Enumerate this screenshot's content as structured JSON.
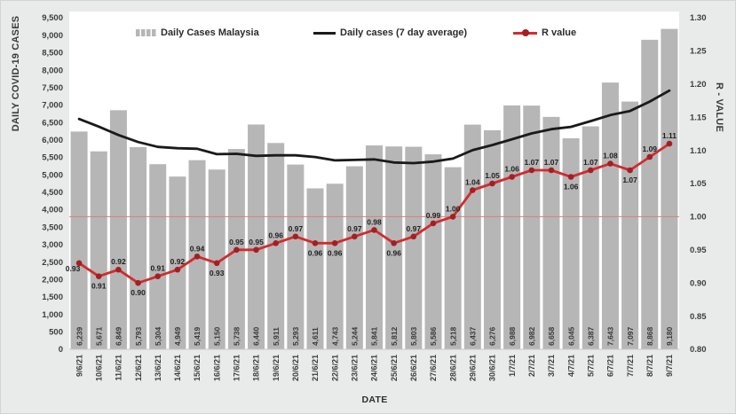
{
  "page": {
    "background": "#e9ebea",
    "plot_background": "#ffffff"
  },
  "chart_data": {
    "type": "bar",
    "title": "",
    "x_axis": {
      "label": "DATE",
      "categories": [
        "9/6/21",
        "10/6/21",
        "11/6/21",
        "12/6/21",
        "13/6/21",
        "14/6/21",
        "15/6/21",
        "16/6/21",
        "17/6/21",
        "18/6/21",
        "19/6/21",
        "20/6/21",
        "21/6/21",
        "22/6/21",
        "23/6/21",
        "24/6/21",
        "25/6/21",
        "26/6/21",
        "27/6/21",
        "28/6/21",
        "29/6/21",
        "30/6/21",
        "1/7/21",
        "2/7/21",
        "3/7/21",
        "4/7/21",
        "5/7/21",
        "6/7/21",
        "7/7/21",
        "8/7/21",
        "9/7/21"
      ]
    },
    "y_left": {
      "label": "DAILY COVID-19 CASES",
      "min": 0,
      "max": 9500,
      "step": 500,
      "ticks": [
        "0",
        "500",
        "1,000",
        "1,500",
        "2,000",
        "2,500",
        "3,000",
        "3,500",
        "4,000",
        "4,500",
        "5,000",
        "5,500",
        "6,000",
        "6,500",
        "7,000",
        "7,500",
        "8,000",
        "8,500",
        "9,000",
        "9,500"
      ]
    },
    "y_right": {
      "label": "R - VALUE",
      "min": 0.8,
      "max": 1.3,
      "step": 0.05,
      "ticks": [
        "0.80",
        "0.85",
        "0.90",
        "0.95",
        "1.00",
        "1.05",
        "1.10",
        "1.15",
        "1.20",
        "1.25",
        "1.30"
      ]
    },
    "grid": "off",
    "legend_position": "top-inside",
    "series": [
      {
        "name": "Daily Cases Malaysia",
        "type": "bar",
        "axis": "left",
        "color": "#b6b6b6",
        "values": [
          6239,
          5671,
          6849,
          5793,
          5304,
          4949,
          5419,
          5150,
          5738,
          6440,
          5911,
          5293,
          4611,
          4743,
          5244,
          5841,
          5812,
          5803,
          5586,
          5218,
          6437,
          6276,
          6988,
          6982,
          6658,
          6045,
          6387,
          7643,
          7097,
          8868,
          9180
        ],
        "value_labels": [
          "6,239",
          "5,671",
          "6,849",
          "5,793",
          "5,304",
          "4,949",
          "5,419",
          "5,150",
          "5,738",
          "6,440",
          "5,911",
          "5,293",
          "4,611",
          "4,743",
          "5,244",
          "5,841",
          "5,812",
          "5,803",
          "5,586",
          "5,218",
          "6,437",
          "6,276",
          "6,988",
          "6,982",
          "6,658",
          "6,045",
          "6,387",
          "7,643",
          "7,097",
          "8,868",
          "9,180"
        ]
      },
      {
        "name": "Daily cases (7 day average)",
        "type": "line",
        "axis": "left",
        "color": "#1a1a1a",
        "values": [
          6600,
          6380,
          6140,
          5940,
          5800,
          5760,
          5746,
          5591,
          5600,
          5542,
          5559,
          5557,
          5509,
          5412,
          5426,
          5440,
          5351,
          5335,
          5377,
          5464,
          5706,
          5853,
          6017,
          6184,
          6306,
          6372,
          6539,
          6711,
          6829,
          7097,
          7411
        ]
      },
      {
        "name": "R value",
        "type": "line",
        "axis": "right",
        "color": "#d22b2b",
        "marker_color": "#a31f24",
        "values": [
          0.93,
          0.91,
          0.92,
          0.9,
          0.91,
          0.92,
          0.94,
          0.93,
          0.95,
          0.95,
          0.96,
          0.97,
          0.96,
          0.96,
          0.97,
          0.98,
          0.96,
          0.97,
          0.99,
          1.0,
          1.04,
          1.05,
          1.06,
          1.07,
          1.07,
          1.06,
          1.07,
          1.08,
          1.07,
          1.09,
          1.11
        ],
        "point_labels": [
          "0.93",
          "0.91",
          "0.92",
          "0.90",
          "0.91",
          "0.92",
          "0.94",
          "0.93",
          "0.95",
          "0.95",
          "0.96",
          "0.97",
          "0.96",
          "0.96",
          "0.97",
          "0.98",
          "0.96",
          "0.97",
          "0.99",
          "1.00",
          "1.04",
          "1.05",
          "1.06",
          "1.07",
          "1.07",
          "1.06",
          "1.07",
          "1.08",
          "1.07",
          "1.09",
          "1.11"
        ],
        "label_positions": [
          "below-left",
          "below",
          "above",
          "below",
          "above",
          "above",
          "above",
          "below",
          "above",
          "above",
          "above",
          "above",
          "below",
          "below",
          "above",
          "above",
          "below",
          "above",
          "above",
          "above",
          "above",
          "above",
          "above",
          "above",
          "above",
          "below",
          "above",
          "above",
          "below",
          "above",
          "above"
        ]
      }
    ],
    "reference_line": {
      "axis": "right",
      "value": 1.0,
      "color": "#dd7e7e"
    },
    "colors": {
      "tick_text": "#3d3d3d",
      "bar_value_text": "#3a3a3a",
      "point_label_text": "#1f1f1f",
      "axis_line": "#c6c8c7"
    }
  }
}
